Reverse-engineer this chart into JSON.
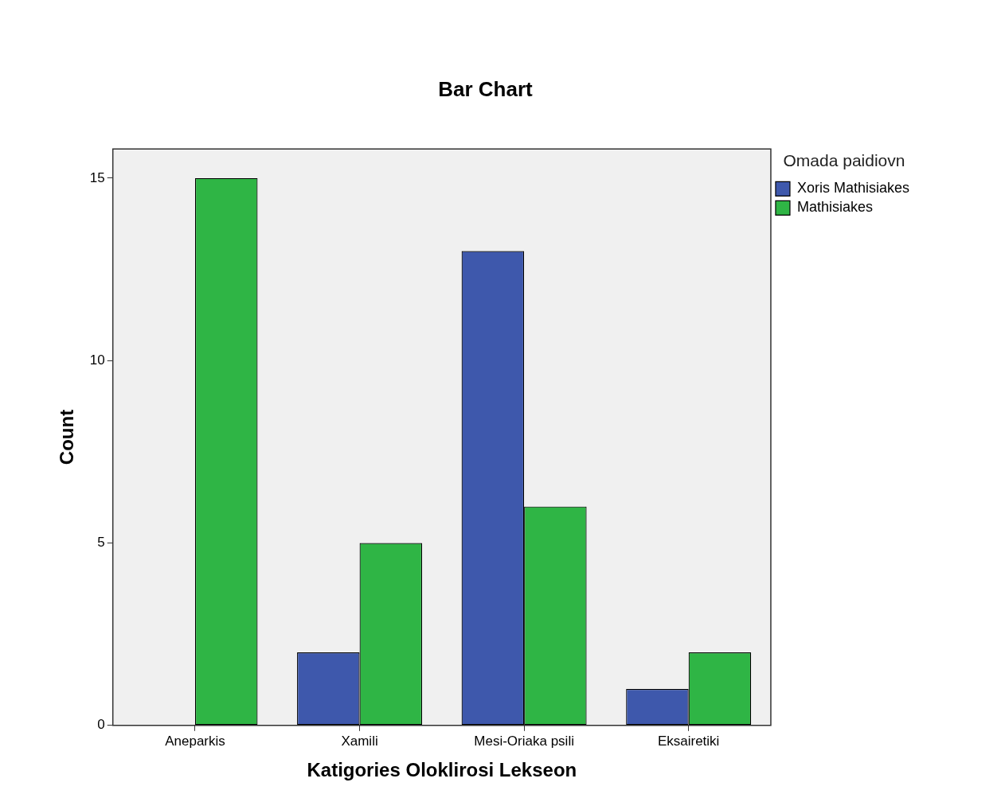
{
  "chart_data": {
    "type": "bar",
    "title": "Bar Chart",
    "xlabel": "Katigories Oloklirosi Lekseon",
    "ylabel": "Count",
    "legend_title": "Omada paidiovn",
    "legend": "right",
    "categories": [
      "Aneparkis",
      "Xamili",
      "Mesi-Oriaka psili",
      "Eksairetiki"
    ],
    "series": [
      {
        "name": "Xoris Mathisiakes",
        "color": "#3e58ac",
        "values": [
          0,
          2,
          13,
          1
        ]
      },
      {
        "name": "Mathisiakes",
        "color": "#2fb545",
        "values": [
          15,
          5,
          6,
          2
        ]
      }
    ],
    "ylim": [
      0,
      15.8
    ],
    "yticks": [
      0,
      5,
      10,
      15
    ]
  }
}
